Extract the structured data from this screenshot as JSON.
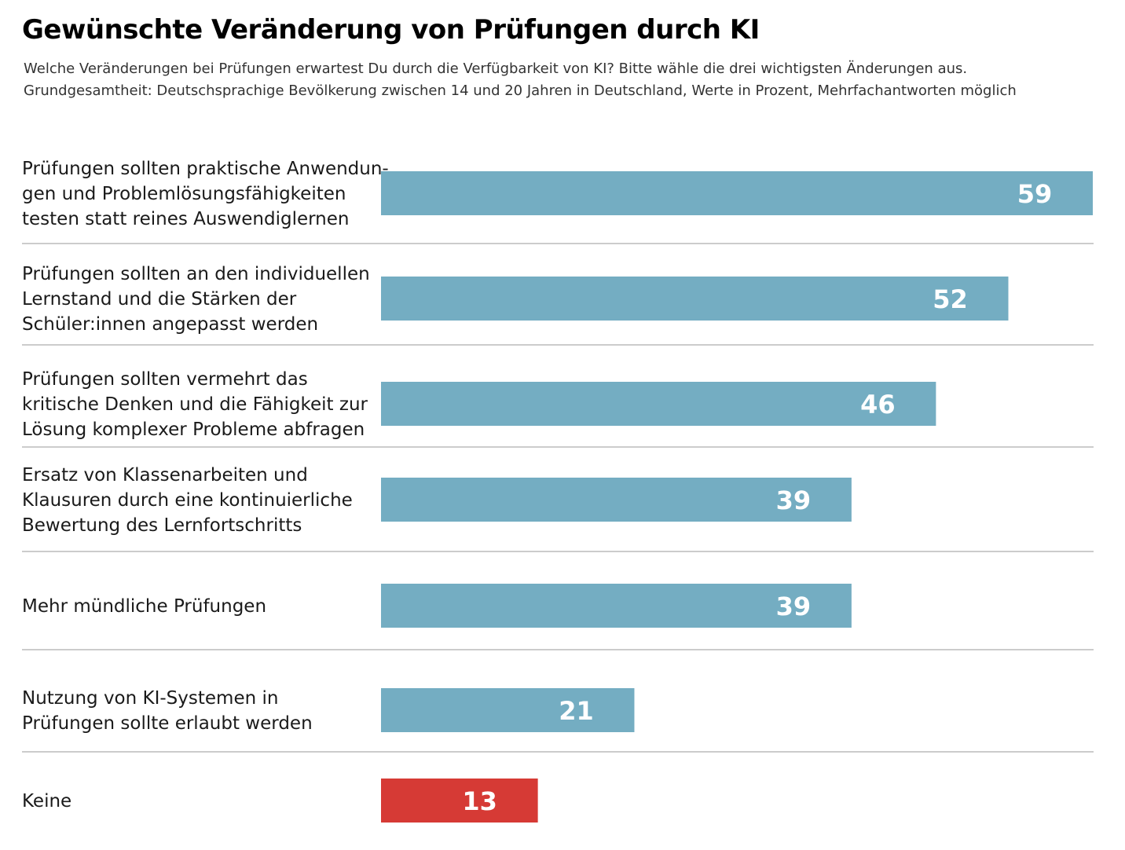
{
  "chart_data": {
    "type": "bar",
    "orientation": "horizontal",
    "title": "Gewünschte Veränderung von Prüfungen durch KI",
    "subtitle": [
      "Welche Veränderungen bei Prüfungen erwartest Du durch die Verfügbarkeit von KI? Bitte wähle die drei wichtigsten Änderungen aus.",
      "Grundgesamtheit: Deutschsprachige Bevölkerung zwischen 14 und 20 Jahren in Deutschland, Werte in Prozent, Mehrfachantworten möglich"
    ],
    "categories": [
      [
        "Prüfungen sollten praktische Anwendun-",
        "gen und Problemlösungsfähigkeiten",
        "testen statt reines Auswendiglernen"
      ],
      [
        "Prüfungen sollten an den individuellen",
        "Lernstand und die Stärken der",
        "Schüler:innen angepasst werden"
      ],
      [
        "Prüfungen sollten vermehrt das",
        "kritische Denken und die Fähigkeit zur",
        "Lösung komplexer Probleme abfragen"
      ],
      [
        "Ersatz von Klassenarbeiten und",
        "Klausuren durch eine kontinuierliche",
        "Bewertung des Lernfortschritts"
      ],
      [
        "Mehr mündliche Prüfungen"
      ],
      [
        "Nutzung von KI-Systemen in",
        "Prüfungen sollte erlaubt werden"
      ],
      [
        "Keine"
      ]
    ],
    "values": [
      59,
      52,
      46,
      39,
      39,
      21,
      13
    ],
    "value_labels": [
      "59",
      "52",
      "46",
      "39",
      "39",
      "21",
      "13"
    ],
    "colors": [
      "#74adc2",
      "#74adc2",
      "#74adc2",
      "#74adc2",
      "#74adc2",
      "#74adc2",
      "#d63a35"
    ],
    "value_label_color": "#ffffff",
    "separator_color": "#bbbbbb",
    "xlim": [
      0,
      59
    ],
    "grid": false,
    "legend": "none"
  }
}
